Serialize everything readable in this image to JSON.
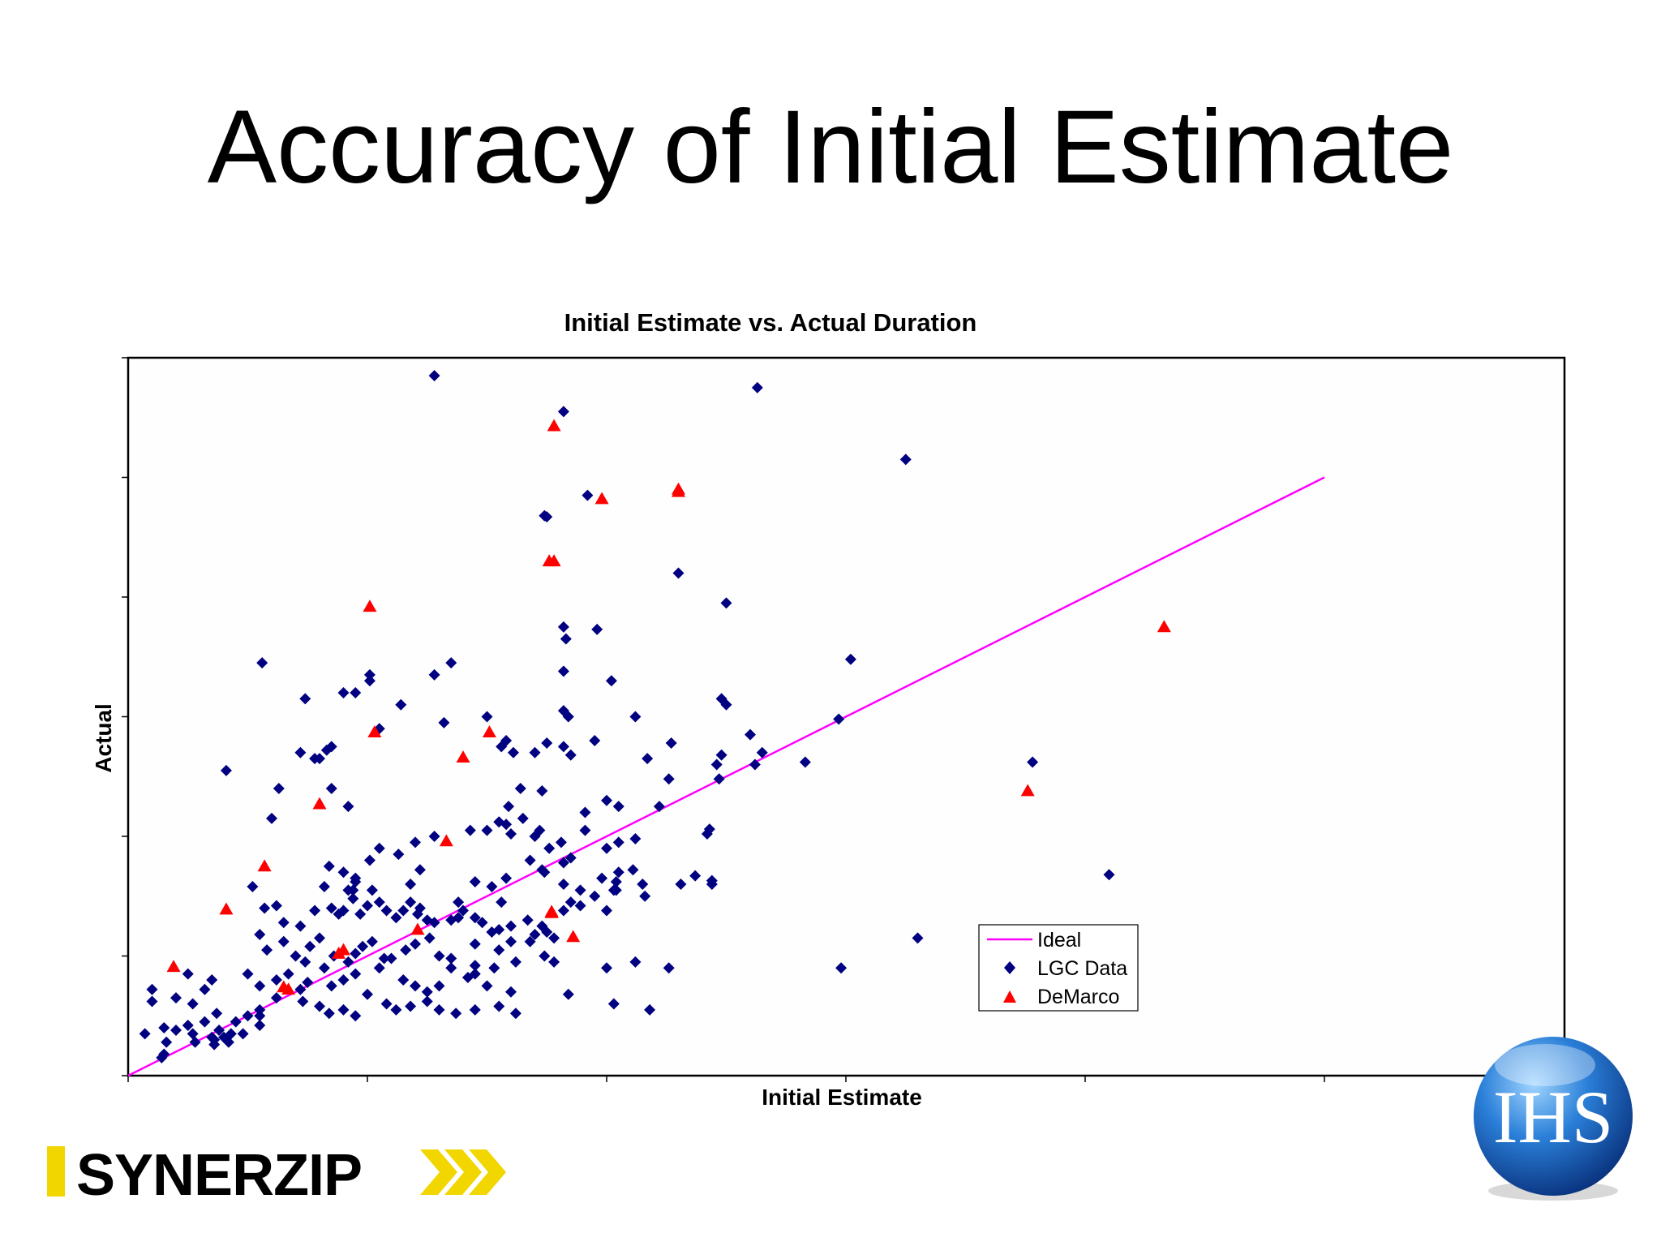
{
  "slide": {
    "title": "Accuracy of Initial Estimate"
  },
  "logos": {
    "left": "SYNERZIP",
    "right": "IHS"
  },
  "colors": {
    "lgc": "#000080",
    "demarco": "#ff0000",
    "ideal": "#ff00ff"
  },
  "chart_data": {
    "type": "scatter",
    "title": "Initial Estimate vs. Actual Duration",
    "xlabel": "Initial Estimate",
    "ylabel": "Actual",
    "xlim": [
      0,
      6
    ],
    "ylim": [
      0,
      6
    ],
    "x_ticks": [
      0,
      1,
      2,
      3,
      4,
      5
    ],
    "y_ticks": [
      0,
      1,
      2,
      3,
      4,
      5,
      6
    ],
    "tick_labels_shown": false,
    "grid": false,
    "legend_position": "bottom-right",
    "legend": [
      "Ideal",
      "LGC Data",
      "DeMarco"
    ],
    "series": [
      {
        "name": "Ideal",
        "kind": "line",
        "x": [
          0,
          5
        ],
        "y": [
          0,
          5
        ]
      },
      {
        "name": "LGC Data",
        "kind": "scatter",
        "marker": "diamond",
        "points": [
          [
            1.28,
            5.85
          ],
          [
            1.82,
            5.55
          ],
          [
            2.63,
            5.75
          ],
          [
            1.92,
            4.85
          ],
          [
            1.74,
            4.68
          ],
          [
            1.75,
            4.67
          ],
          [
            2.3,
            4.2
          ],
          [
            1.82,
            3.75
          ],
          [
            1.83,
            3.65
          ],
          [
            2.5,
            3.95
          ],
          [
            1.96,
            3.73
          ],
          [
            1.82,
            3.38
          ],
          [
            1.82,
            3.05
          ],
          [
            1.84,
            3.0
          ],
          [
            2.12,
            3.0
          ],
          [
            2.17,
            2.65
          ],
          [
            2.02,
            3.3
          ],
          [
            2.83,
            2.62
          ],
          [
            0.56,
            3.45
          ],
          [
            0.74,
            3.15
          ],
          [
            0.9,
            3.2
          ],
          [
            0.95,
            3.2
          ],
          [
            1.01,
            3.35
          ],
          [
            1.01,
            3.3
          ],
          [
            0.72,
            2.7
          ],
          [
            0.8,
            2.65
          ],
          [
            0.85,
            2.75
          ],
          [
            0.83,
            2.72
          ],
          [
            0.78,
            2.65
          ],
          [
            1.05,
            2.9
          ],
          [
            1.14,
            3.1
          ],
          [
            1.28,
            3.35
          ],
          [
            1.35,
            3.45
          ],
          [
            1.5,
            3.0
          ],
          [
            1.32,
            2.95
          ],
          [
            1.58,
            2.8
          ],
          [
            1.56,
            2.75
          ],
          [
            1.61,
            2.7
          ],
          [
            1.7,
            2.7
          ],
          [
            1.75,
            2.78
          ],
          [
            1.82,
            2.75
          ],
          [
            1.85,
            2.68
          ],
          [
            1.95,
            2.8
          ],
          [
            2.27,
            2.78
          ],
          [
            2.46,
            2.6
          ],
          [
            2.47,
            2.48
          ],
          [
            2.48,
            2.68
          ],
          [
            2.26,
            2.48
          ],
          [
            0.41,
            2.55
          ],
          [
            0.63,
            2.4
          ],
          [
            0.6,
            2.15
          ],
          [
            0.92,
            2.25
          ],
          [
            0.85,
            2.4
          ],
          [
            1.64,
            2.4
          ],
          [
            1.59,
            2.25
          ],
          [
            1.73,
            2.38
          ],
          [
            2.22,
            2.25
          ],
          [
            2.43,
            2.06
          ],
          [
            2.42,
            2.02
          ],
          [
            2.11,
            1.72
          ],
          [
            1.91,
            2.2
          ],
          [
            1.7,
            2.0
          ],
          [
            1.72,
            2.05
          ],
          [
            1.91,
            2.05
          ],
          [
            2.05,
            1.95
          ],
          [
            2.12,
            1.98
          ],
          [
            1.76,
            1.9
          ],
          [
            1.81,
            1.95
          ],
          [
            1.82,
            1.78
          ],
          [
            1.85,
            1.82
          ],
          [
            0.84,
            1.75
          ],
          [
            0.9,
            1.7
          ],
          [
            0.95,
            1.65
          ],
          [
            1.01,
            1.8
          ],
          [
            1.05,
            1.9
          ],
          [
            1.13,
            1.85
          ],
          [
            1.2,
            1.95
          ],
          [
            1.28,
            2.0
          ],
          [
            1.43,
            2.05
          ],
          [
            1.5,
            2.05
          ],
          [
            1.58,
            2.1
          ],
          [
            1.55,
            2.12
          ],
          [
            1.65,
            2.15
          ],
          [
            1.6,
            2.02
          ],
          [
            1.45,
            1.62
          ],
          [
            1.52,
            1.58
          ],
          [
            1.58,
            1.65
          ],
          [
            1.68,
            1.8
          ],
          [
            1.73,
            1.72
          ],
          [
            1.74,
            1.7
          ],
          [
            1.82,
            1.6
          ],
          [
            1.89,
            1.55
          ],
          [
            1.95,
            1.5
          ],
          [
            1.98,
            1.65
          ],
          [
            2.04,
            1.62
          ],
          [
            2.04,
            1.55
          ],
          [
            2.15,
            1.6
          ],
          [
            2.16,
            1.5
          ],
          [
            2.31,
            1.6
          ],
          [
            2.37,
            1.67
          ],
          [
            2.44,
            1.6
          ],
          [
            2.44,
            1.63
          ],
          [
            0.82,
            1.58
          ],
          [
            0.95,
            1.62
          ],
          [
            0.94,
            1.55
          ],
          [
            1.02,
            1.55
          ],
          [
            1.18,
            1.6
          ],
          [
            1.22,
            1.72
          ],
          [
            0.52,
            1.58
          ],
          [
            0.62,
            1.42
          ],
          [
            0.57,
            1.4
          ],
          [
            0.92,
            1.55
          ],
          [
            1.21,
            1.35
          ],
          [
            1.38,
            1.45
          ],
          [
            1.56,
            1.45
          ],
          [
            1.89,
            1.42
          ],
          [
            1.82,
            1.38
          ],
          [
            2.03,
            1.55
          ],
          [
            0.55,
            1.18
          ],
          [
            0.65,
            1.28
          ],
          [
            0.72,
            1.25
          ],
          [
            0.78,
            1.38
          ],
          [
            0.85,
            1.4
          ],
          [
            0.88,
            1.35
          ],
          [
            0.9,
            1.38
          ],
          [
            0.94,
            1.48
          ],
          [
            0.97,
            1.35
          ],
          [
            1.0,
            1.42
          ],
          [
            1.05,
            1.45
          ],
          [
            1.08,
            1.38
          ],
          [
            1.12,
            1.32
          ],
          [
            1.15,
            1.38
          ],
          [
            1.18,
            1.45
          ],
          [
            1.22,
            1.4
          ],
          [
            1.25,
            1.3
          ],
          [
            1.28,
            1.28
          ],
          [
            1.35,
            1.3
          ],
          [
            1.4,
            1.38
          ],
          [
            1.45,
            1.32
          ],
          [
            1.48,
            1.28
          ],
          [
            1.52,
            1.2
          ],
          [
            1.55,
            1.22
          ],
          [
            1.6,
            1.25
          ],
          [
            1.67,
            1.3
          ],
          [
            1.7,
            1.18
          ],
          [
            1.75,
            1.2
          ],
          [
            1.73,
            1.25
          ],
          [
            0.58,
            1.05
          ],
          [
            0.65,
            1.12
          ],
          [
            0.7,
            1.0
          ],
          [
            0.74,
            0.95
          ],
          [
            0.76,
            1.08
          ],
          [
            0.8,
            1.15
          ],
          [
            0.86,
            1.0
          ],
          [
            0.92,
            0.95
          ],
          [
            0.95,
            1.02
          ],
          [
            0.98,
            1.08
          ],
          [
            1.02,
            1.12
          ],
          [
            1.07,
            0.98
          ],
          [
            1.1,
            0.98
          ],
          [
            1.16,
            1.05
          ],
          [
            1.2,
            1.1
          ],
          [
            1.26,
            1.15
          ],
          [
            1.3,
            1.0
          ],
          [
            1.35,
            0.98
          ],
          [
            1.45,
            1.1
          ],
          [
            1.55,
            1.05
          ],
          [
            1.6,
            1.12
          ],
          [
            1.68,
            1.12
          ],
          [
            1.78,
            1.15
          ],
          [
            1.62,
            0.95
          ],
          [
            1.74,
            1.0
          ],
          [
            0.25,
            0.85
          ],
          [
            0.35,
            0.8
          ],
          [
            0.32,
            0.72
          ],
          [
            0.5,
            0.85
          ],
          [
            0.55,
            0.75
          ],
          [
            0.62,
            0.8
          ],
          [
            0.67,
            0.85
          ],
          [
            0.72,
            0.72
          ],
          [
            0.75,
            0.78
          ],
          [
            0.82,
            0.9
          ],
          [
            0.85,
            0.75
          ],
          [
            0.9,
            0.8
          ],
          [
            0.95,
            0.85
          ],
          [
            1.05,
            0.9
          ],
          [
            1.15,
            0.8
          ],
          [
            1.2,
            0.75
          ],
          [
            1.25,
            0.7
          ],
          [
            1.3,
            0.75
          ],
          [
            1.45,
            0.85
          ],
          [
            1.5,
            0.75
          ],
          [
            1.6,
            0.7
          ],
          [
            1.53,
            0.9
          ],
          [
            1.42,
            0.82
          ],
          [
            1.78,
            0.95
          ],
          [
            1.84,
            0.68
          ],
          [
            0.1,
            0.72
          ],
          [
            0.1,
            0.62
          ],
          [
            0.2,
            0.65
          ],
          [
            0.27,
            0.6
          ],
          [
            0.37,
            0.52
          ],
          [
            0.45,
            0.45
          ],
          [
            0.5,
            0.5
          ],
          [
            0.55,
            0.55
          ],
          [
            0.62,
            0.65
          ],
          [
            0.73,
            0.62
          ],
          [
            0.8,
            0.58
          ],
          [
            0.84,
            0.52
          ],
          [
            0.9,
            0.55
          ],
          [
            0.95,
            0.5
          ],
          [
            1.0,
            0.68
          ],
          [
            1.08,
            0.6
          ],
          [
            1.12,
            0.55
          ],
          [
            1.18,
            0.58
          ],
          [
            1.25,
            0.62
          ],
          [
            1.3,
            0.55
          ],
          [
            1.37,
            0.52
          ],
          [
            1.45,
            0.55
          ],
          [
            1.55,
            0.58
          ],
          [
            1.62,
            0.52
          ],
          [
            0.07,
            0.35
          ],
          [
            0.15,
            0.4
          ],
          [
            0.2,
            0.38
          ],
          [
            0.25,
            0.42
          ],
          [
            0.32,
            0.45
          ],
          [
            0.38,
            0.38
          ],
          [
            0.35,
            0.32
          ],
          [
            0.42,
            0.28
          ],
          [
            0.48,
            0.35
          ],
          [
            0.55,
            0.42
          ],
          [
            0.16,
            0.28
          ],
          [
            0.28,
            0.28
          ],
          [
            0.36,
            0.3
          ],
          [
            0.14,
            0.15
          ],
          [
            0.15,
            0.18
          ],
          [
            0.36,
            0.26
          ],
          [
            0.4,
            0.32
          ],
          [
            0.43,
            0.35
          ],
          [
            0.27,
            0.35
          ],
          [
            0.55,
            0.5
          ],
          [
            1.35,
            0.9
          ],
          [
            1.45,
            0.92
          ],
          [
            2.6,
            2.85
          ],
          [
            2.97,
            2.98
          ],
          [
            3.78,
            2.62
          ],
          [
            4.1,
            1.68
          ],
          [
            3.25,
            5.15
          ],
          [
            3.02,
            3.48
          ],
          [
            2.48,
            3.15
          ],
          [
            2.5,
            3.1
          ],
          [
            2.62,
            2.6
          ],
          [
            2.65,
            2.7
          ],
          [
            2.0,
            2.3
          ],
          [
            2.05,
            2.25
          ],
          [
            2.0,
            1.9
          ],
          [
            2.05,
            1.7
          ],
          [
            2.0,
            1.38
          ],
          [
            1.85,
            1.45
          ],
          [
            1.38,
            1.32
          ],
          [
            3.3,
            1.15
          ],
          [
            2.98,
            0.9
          ],
          [
            2.0,
            0.9
          ],
          [
            2.26,
            0.9
          ],
          [
            2.12,
            0.95
          ],
          [
            2.18,
            0.55
          ],
          [
            2.03,
            0.6
          ]
        ]
      },
      {
        "name": "DeMarco",
        "kind": "scatter",
        "marker": "triangle",
        "points": [
          [
            0.19,
            0.91
          ],
          [
            0.41,
            1.39
          ],
          [
            0.57,
            1.75
          ],
          [
            0.65,
            0.74
          ],
          [
            0.8,
            2.27
          ],
          [
            0.88,
            1.02
          ],
          [
            1.01,
            3.92
          ],
          [
            1.03,
            2.87
          ],
          [
            1.21,
            1.22
          ],
          [
            1.33,
            1.96
          ],
          [
            1.4,
            2.66
          ],
          [
            1.51,
            2.87
          ],
          [
            1.77,
            1.36
          ],
          [
            1.78,
            5.43
          ],
          [
            1.78,
            4.3
          ],
          [
            1.86,
            1.16
          ],
          [
            1.98,
            4.82
          ],
          [
            2.3,
            4.9
          ],
          [
            3.76,
            2.38
          ],
          [
            4.33,
            3.75
          ],
          [
            0.67,
            0.72
          ],
          [
            0.9,
            1.05
          ],
          [
            1.76,
            4.3
          ],
          [
            1.77,
            1.37
          ],
          [
            2.3,
            4.88
          ]
        ]
      }
    ]
  }
}
